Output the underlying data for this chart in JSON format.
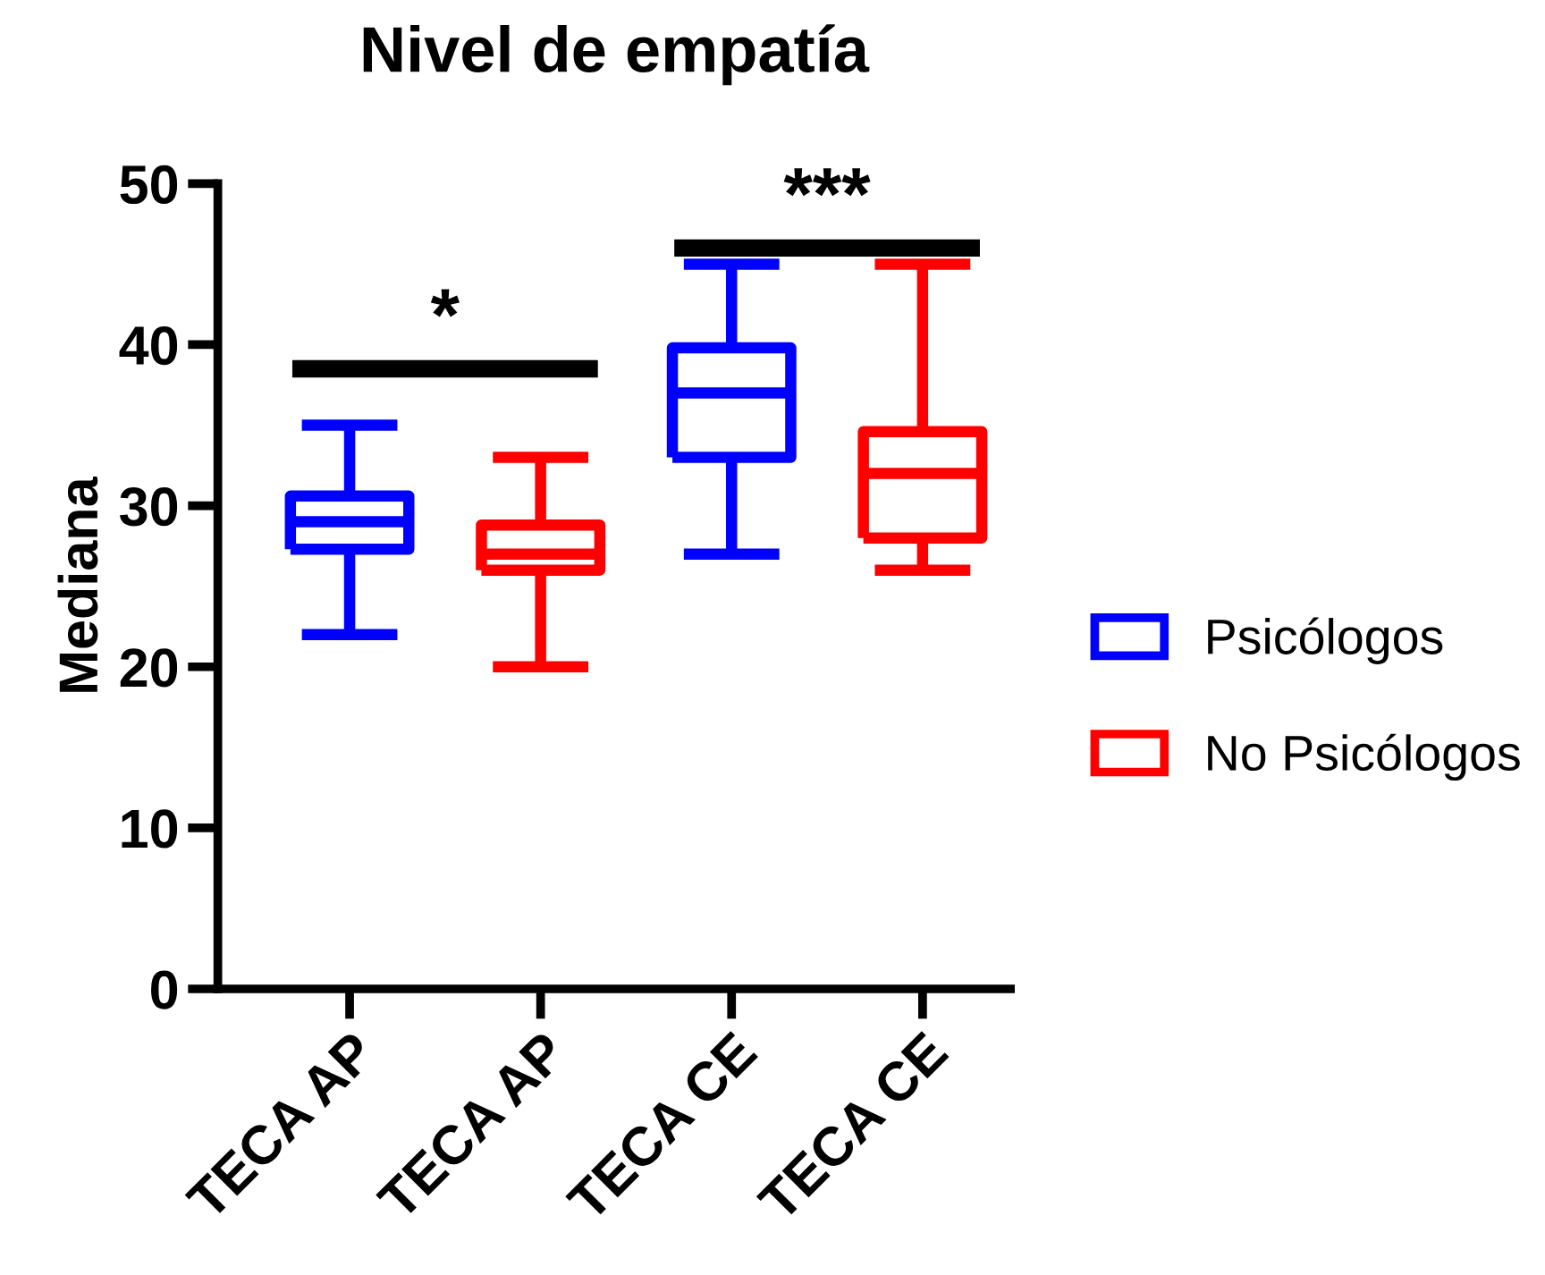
{
  "chart_data": {
    "type": "box",
    "title": "Nivel de empatía",
    "ylabel": "Mediana",
    "categories": [
      "TECA AP",
      "TECA AP",
      "TECA CE",
      "TECA CE"
    ],
    "series": [
      {
        "name": "Psicólogos",
        "color": "#0000ff",
        "boxes": [
          {
            "low": 22,
            "q1": 27.3,
            "median": 29,
            "q3": 30.6,
            "high": 35
          },
          null,
          {
            "low": 27,
            "q1": 33,
            "median": 37,
            "q3": 39.8,
            "high": 45
          },
          null
        ]
      },
      {
        "name": "No Psicólogos",
        "color": "#ff0000",
        "boxes": [
          null,
          {
            "low": 20,
            "q1": 26,
            "median": 27,
            "q3": 28.8,
            "high": 33
          },
          null,
          {
            "low": 26,
            "q1": 28,
            "median": 32,
            "q3": 34.6,
            "high": 45
          }
        ]
      }
    ],
    "ylim": [
      0,
      50
    ],
    "yticks": [
      0,
      10,
      20,
      30,
      40,
      50
    ],
    "grid": false,
    "legend": "right",
    "annotations": [
      "*",
      "***"
    ]
  }
}
